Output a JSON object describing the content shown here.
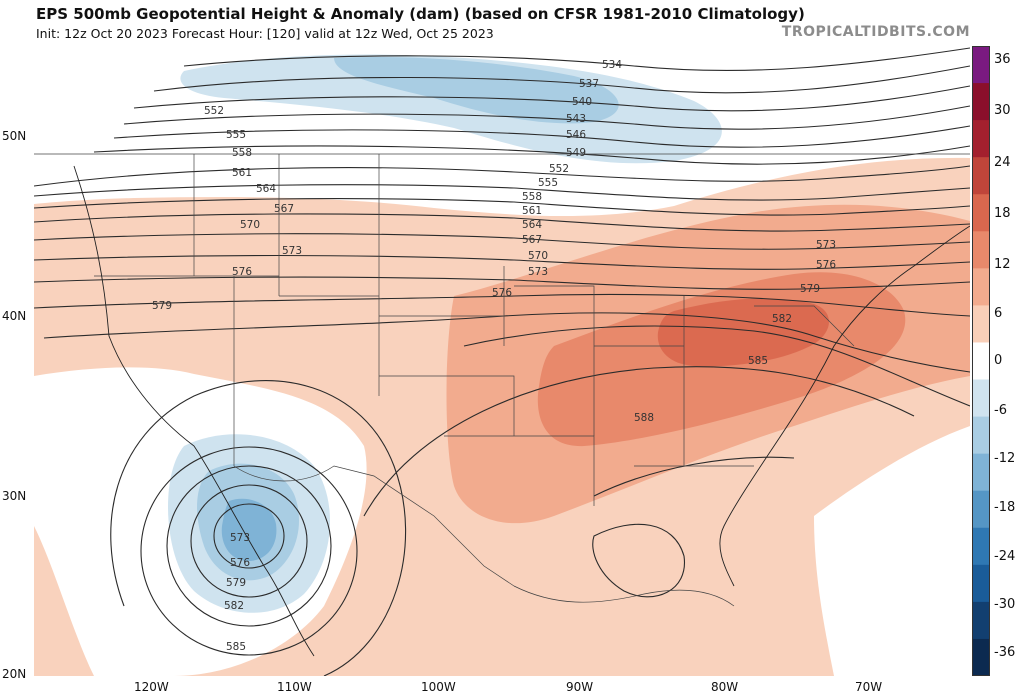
{
  "header": {
    "title": "EPS 500mb Geopotential Height & Anomaly (dam) (based on CFSR 1981-2010 Climatology)",
    "subtitle": "Init: 12z Oct 20 2023   Forecast Hour: [120]   valid at 12z Wed, Oct 25 2023",
    "brand": "TROPICALTIDBITS.COM"
  },
  "map": {
    "lat_labels": [
      "50N",
      "40N",
      "30N",
      "20N"
    ],
    "lon_labels": [
      "120W",
      "110W",
      "100W",
      "90W",
      "80W",
      "70W"
    ],
    "contour_labels": [
      {
        "text": "534"
      },
      {
        "text": "537"
      },
      {
        "text": "540"
      },
      {
        "text": "543"
      },
      {
        "text": "546"
      },
      {
        "text": "549"
      },
      {
        "text": "552"
      },
      {
        "text": "552"
      },
      {
        "text": "555"
      },
      {
        "text": "555"
      },
      {
        "text": "558"
      },
      {
        "text": "558"
      },
      {
        "text": "561"
      },
      {
        "text": "561"
      },
      {
        "text": "564"
      },
      {
        "text": "564"
      },
      {
        "text": "567"
      },
      {
        "text": "567"
      },
      {
        "text": "570"
      },
      {
        "text": "570"
      },
      {
        "text": "573"
      },
      {
        "text": "573"
      },
      {
        "text": "573"
      },
      {
        "text": "576"
      },
      {
        "text": "576"
      },
      {
        "text": "576"
      },
      {
        "text": "579"
      },
      {
        "text": "579"
      },
      {
        "text": "582"
      },
      {
        "text": "585"
      },
      {
        "text": "588"
      },
      {
        "text": "573"
      },
      {
        "text": "576"
      },
      {
        "text": "579"
      },
      {
        "text": "582"
      },
      {
        "text": "585"
      }
    ]
  },
  "colorbar": {
    "labels": [
      "36",
      "30",
      "24",
      "18",
      "12",
      "6",
      "0",
      "-6",
      "-12",
      "-18",
      "-24",
      "-30",
      "-36"
    ],
    "colors": [
      "#7a1a80",
      "#8b0f2b",
      "#a3202e",
      "#c0453a",
      "#d9674e",
      "#e8896b",
      "#f2ab8e",
      "#f9cfb8",
      "#ffffff",
      "#cfe3ef",
      "#a9cde3",
      "#7fb3d6",
      "#5596c5",
      "#2f78b3",
      "#1a5c99",
      "#123f70",
      "#0c2a50"
    ]
  }
}
